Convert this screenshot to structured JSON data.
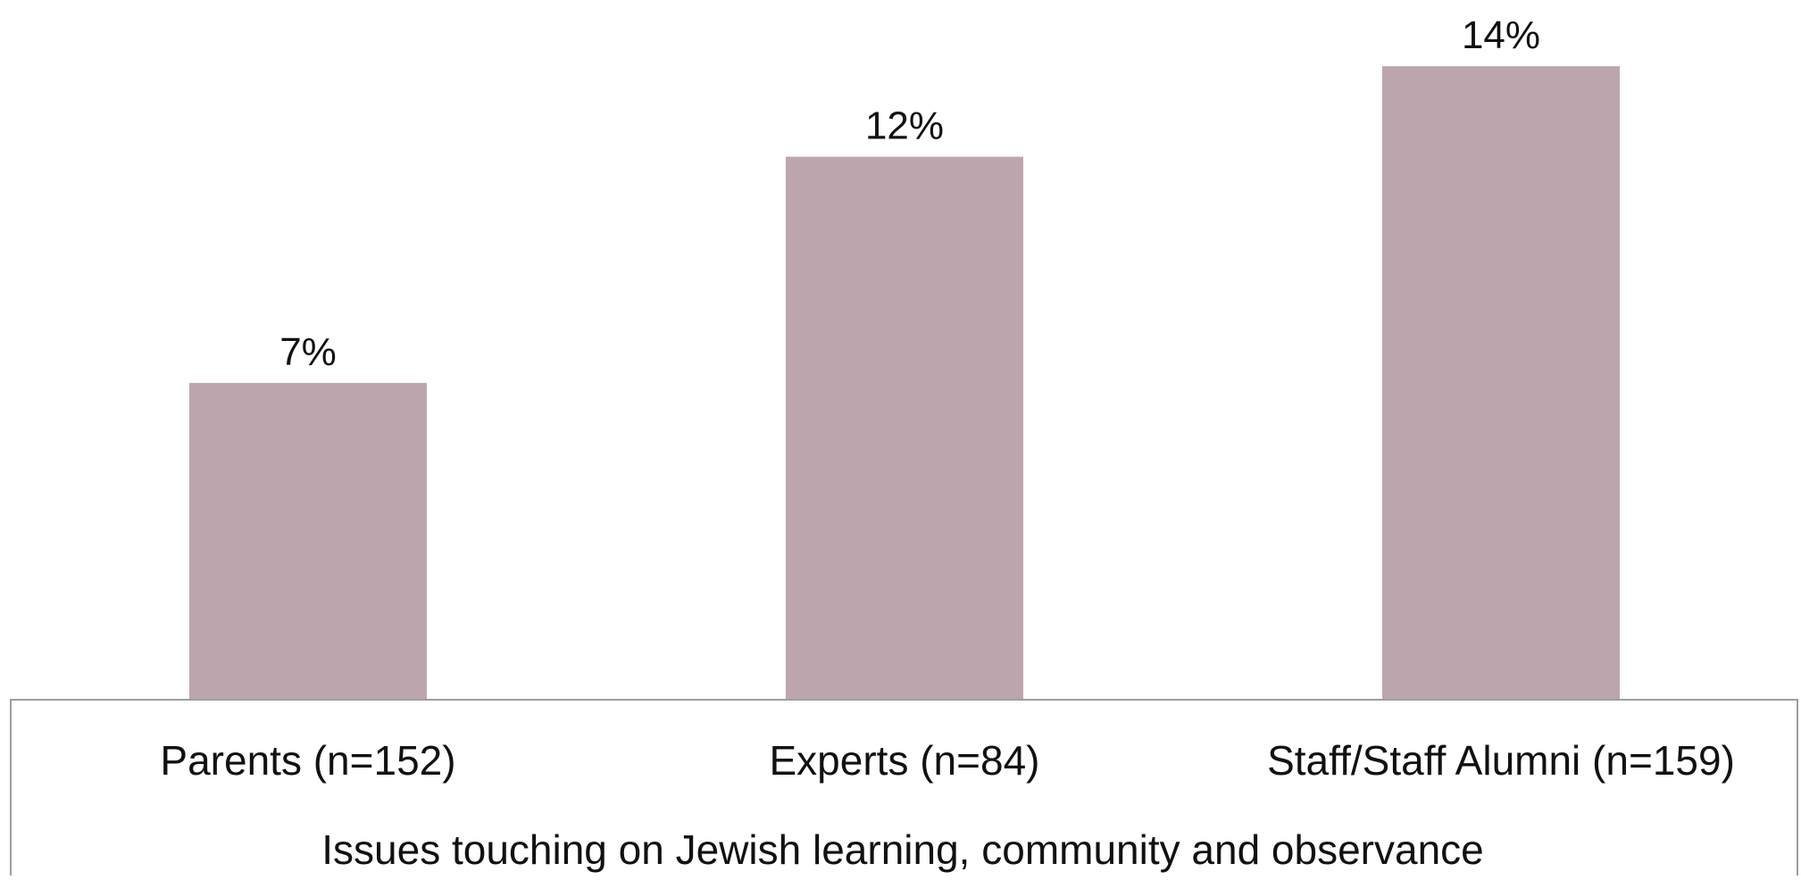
{
  "chart_data": {
    "type": "bar",
    "categories": [
      "Parents (n=152)",
      "Experts (n=84)",
      "Staff/Staff Alumni (n=159)"
    ],
    "values": [
      7,
      12,
      14
    ],
    "value_labels": [
      "7%",
      "12%",
      "14%"
    ],
    "title": "",
    "xlabel": "Issues touching on Jewish learning, community and observance",
    "ylabel": "",
    "ylim": [
      0,
      15
    ],
    "grid": false,
    "legend": "none",
    "colors": {
      "bar": "#bda5ae",
      "axis": "#9e9e9e",
      "text": "#111111"
    }
  }
}
